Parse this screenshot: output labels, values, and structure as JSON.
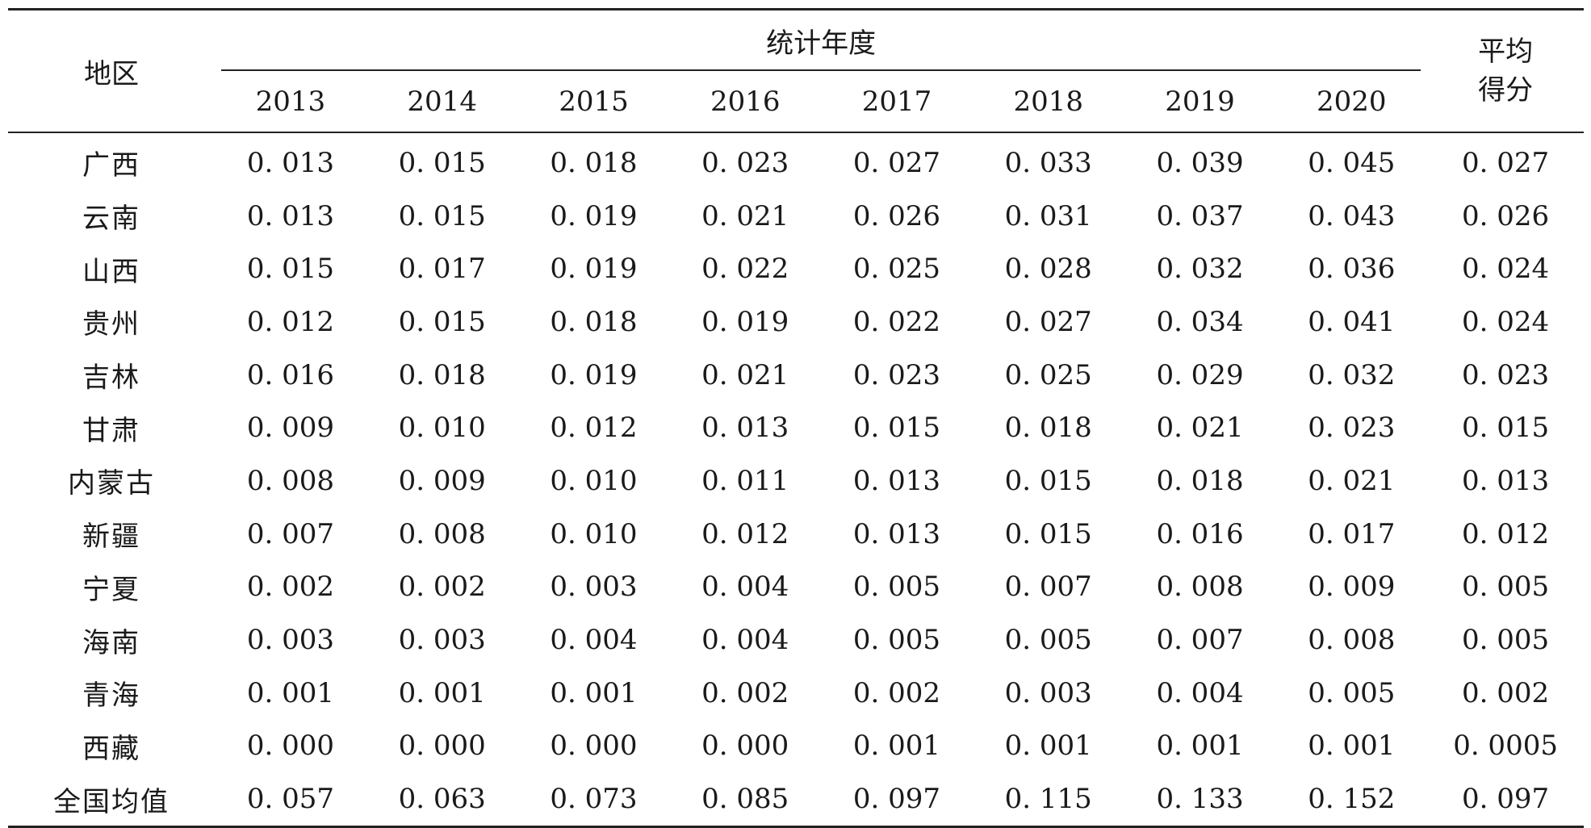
{
  "table": {
    "region_header": "地区",
    "group_header": "统计年度",
    "avg_header_line1": "平均",
    "avg_header_line2": "得分",
    "years": [
      "2013",
      "2014",
      "2015",
      "2016",
      "2017",
      "2018",
      "2019",
      "2020"
    ],
    "rows": [
      {
        "region": "广西",
        "values": [
          "0. 013",
          "0. 015",
          "0. 018",
          "0. 023",
          "0. 027",
          "0. 033",
          "0. 039",
          "0. 045"
        ],
        "avg": "0. 027"
      },
      {
        "region": "云南",
        "values": [
          "0. 013",
          "0. 015",
          "0. 019",
          "0. 021",
          "0. 026",
          "0. 031",
          "0. 037",
          "0. 043"
        ],
        "avg": "0. 026"
      },
      {
        "region": "山西",
        "values": [
          "0. 015",
          "0. 017",
          "0. 019",
          "0. 022",
          "0. 025",
          "0. 028",
          "0. 032",
          "0. 036"
        ],
        "avg": "0. 024"
      },
      {
        "region": "贵州",
        "values": [
          "0. 012",
          "0. 015",
          "0. 018",
          "0. 019",
          "0. 022",
          "0. 027",
          "0. 034",
          "0. 041"
        ],
        "avg": "0. 024"
      },
      {
        "region": "吉林",
        "values": [
          "0. 016",
          "0. 018",
          "0. 019",
          "0. 021",
          "0. 023",
          "0. 025",
          "0. 029",
          "0. 032"
        ],
        "avg": "0. 023"
      },
      {
        "region": "甘肃",
        "values": [
          "0. 009",
          "0. 010",
          "0. 012",
          "0. 013",
          "0. 015",
          "0. 018",
          "0. 021",
          "0. 023"
        ],
        "avg": "0. 015"
      },
      {
        "region": "内蒙古",
        "values": [
          "0. 008",
          "0. 009",
          "0. 010",
          "0. 011",
          "0. 013",
          "0. 015",
          "0. 018",
          "0. 021"
        ],
        "avg": "0. 013"
      },
      {
        "region": "新疆",
        "values": [
          "0. 007",
          "0. 008",
          "0. 010",
          "0. 012",
          "0. 013",
          "0. 015",
          "0. 016",
          "0. 017"
        ],
        "avg": "0. 012"
      },
      {
        "region": "宁夏",
        "values": [
          "0. 002",
          "0. 002",
          "0. 003",
          "0. 004",
          "0. 005",
          "0. 007",
          "0. 008",
          "0. 009"
        ],
        "avg": "0. 005"
      },
      {
        "region": "海南",
        "values": [
          "0. 003",
          "0. 003",
          "0. 004",
          "0. 004",
          "0. 005",
          "0. 005",
          "0. 007",
          "0. 008"
        ],
        "avg": "0. 005"
      },
      {
        "region": "青海",
        "values": [
          "0. 001",
          "0. 001",
          "0. 001",
          "0. 002",
          "0. 002",
          "0. 003",
          "0. 004",
          "0. 005"
        ],
        "avg": "0. 002"
      },
      {
        "region": "西藏",
        "values": [
          "0. 000",
          "0. 000",
          "0. 000",
          "0. 000",
          "0. 001",
          "0. 001",
          "0. 001",
          "0. 001"
        ],
        "avg": "0. 0005"
      },
      {
        "region": "全国均值",
        "values": [
          "0. 057",
          "0. 063",
          "0. 073",
          "0. 085",
          "0. 097",
          "0. 115",
          "0. 133",
          "0. 152"
        ],
        "avg": "0. 097"
      }
    ]
  }
}
